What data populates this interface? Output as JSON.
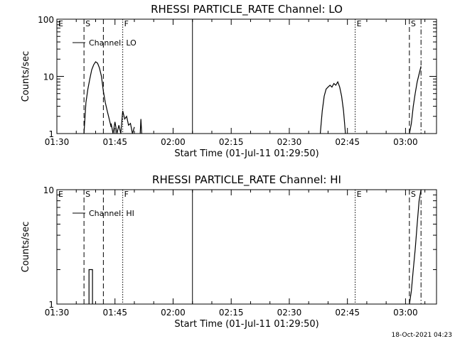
{
  "footer_timestamp": "18-Oct-2021 04:23",
  "chart_data": [
    {
      "type": "line",
      "title": "RHESSI PARTICLE_RATE Channel: LO",
      "xlabel": "Start Time (01-Jul-11 01:29:50)",
      "ylabel": "Counts/sec",
      "y_scale": "log",
      "ylim": [
        1,
        100
      ],
      "y_ticks": [
        1,
        10,
        100
      ],
      "y_tick_labels": [
        "1",
        "10",
        "100"
      ],
      "xlim": [
        "01:30",
        "03:08"
      ],
      "x_tick_labels": [
        "01:30",
        "01:45",
        "02:00",
        "02:15",
        "02:30",
        "02:45",
        "03:00"
      ],
      "legend": [
        "Channel: LO"
      ],
      "legend_placement": "top-left",
      "markers": [
        {
          "label": "E",
          "time": "01:30",
          "style": "none"
        },
        {
          "label": "S",
          "time": "01:37",
          "style": "dashed"
        },
        {
          "label": "",
          "time": "01:42",
          "style": "dashed"
        },
        {
          "label": "F",
          "time": "01:47",
          "style": "dotted"
        },
        {
          "label": "",
          "time": "02:05",
          "style": "solid"
        },
        {
          "label": "E",
          "time": "02:47",
          "style": "dotted"
        },
        {
          "label": "S",
          "time": "03:01",
          "style": "dashed"
        },
        {
          "label": "",
          "time": "03:04",
          "style": "dashdot"
        }
      ],
      "series": [
        {
          "segments": [
            {
              "x": [
                "01:37",
                "01:37.5",
                "01:38",
                "01:38.5",
                "01:39",
                "01:39.5",
                "01:40",
                "01:40.5",
                "01:41",
                "01:41.5",
                "01:42",
                "01:42.5",
                "01:43",
                "01:43.5",
                "01:44"
              ],
              "y": [
                1,
                3.5,
                6,
                9,
                13,
                16,
                18,
                17,
                14,
                10,
                5.5,
                3.5,
                2.5,
                1.8,
                1.3
              ]
            },
            {
              "x": [
                "01:44",
                "01:44.5",
                "01:45",
                "01:45.5",
                "01:46",
                "01:46.5",
                "01:47",
                "01:47.5",
                "01:48",
                "01:48.5",
                "01:49",
                "01:49.5",
                "01:50"
              ],
              "y": [
                1.5,
                1,
                1.6,
                1,
                1.4,
                1,
                2.5,
                1.8,
                2,
                1.4,
                1.5,
                1,
                1.3
              ]
            },
            {
              "x": [
                "01:51.5",
                "01:51.7",
                "01:51.9"
              ],
              "y": [
                1,
                1.8,
                1
              ]
            },
            {
              "x": [
                "02:38",
                "02:38.5",
                "02:39",
                "02:39.5",
                "02:40",
                "02:40.5",
                "02:41",
                "02:41.5",
                "02:42",
                "02:42.5",
                "02:43",
                "02:43.5",
                "02:44",
                "02:44.5"
              ],
              "y": [
                1,
                2.5,
                4.5,
                6,
                6.5,
                7,
                6.5,
                7.5,
                7,
                8,
                6.5,
                4.5,
                2.5,
                1
              ]
            },
            {
              "x": [
                "03:01",
                "03:01.5",
                "03:02",
                "03:02.5",
                "03:03",
                "03:03.5",
                "03:04"
              ],
              "y": [
                1,
                1.5,
                3,
                5,
                8,
                11,
                15
              ]
            }
          ]
        }
      ]
    },
    {
      "type": "line",
      "title": "RHESSI PARTICLE_RATE Channel: HI",
      "xlabel": "Start Time (01-Jul-11 01:29:50)",
      "ylabel": "Counts/sec",
      "y_scale": "log",
      "ylim": [
        1,
        10
      ],
      "y_ticks": [
        1,
        10
      ],
      "y_tick_labels": [
        "1",
        "10"
      ],
      "xlim": [
        "01:30",
        "03:08"
      ],
      "x_tick_labels": [
        "01:30",
        "01:45",
        "02:00",
        "02:15",
        "02:30",
        "02:45",
        "03:00"
      ],
      "legend": [
        "Channel: HI"
      ],
      "legend_placement": "top-left",
      "markers": [
        {
          "label": "E",
          "time": "01:30",
          "style": "none"
        },
        {
          "label": "S",
          "time": "01:37",
          "style": "dashed"
        },
        {
          "label": "",
          "time": "01:42",
          "style": "dashed"
        },
        {
          "label": "F",
          "time": "01:47",
          "style": "dotted"
        },
        {
          "label": "",
          "time": "02:05",
          "style": "solid"
        },
        {
          "label": "E",
          "time": "02:47",
          "style": "dotted"
        },
        {
          "label": "S",
          "time": "03:01",
          "style": "dashed"
        },
        {
          "label": "",
          "time": "03:04",
          "style": "dashdot"
        }
      ],
      "series": [
        {
          "segments": [
            {
              "x": [
                "01:38.3",
                "01:38.3",
                "01:39.2",
                "01:39.2"
              ],
              "y": [
                1,
                2,
                2,
                1
              ]
            },
            {
              "x": [
                "03:01",
                "03:01.5",
                "03:02",
                "03:02.5",
                "03:03",
                "03:03.5",
                "03:04"
              ],
              "y": [
                1,
                1.3,
                2,
                3,
                5,
                8,
                10
              ]
            }
          ]
        }
      ]
    }
  ]
}
